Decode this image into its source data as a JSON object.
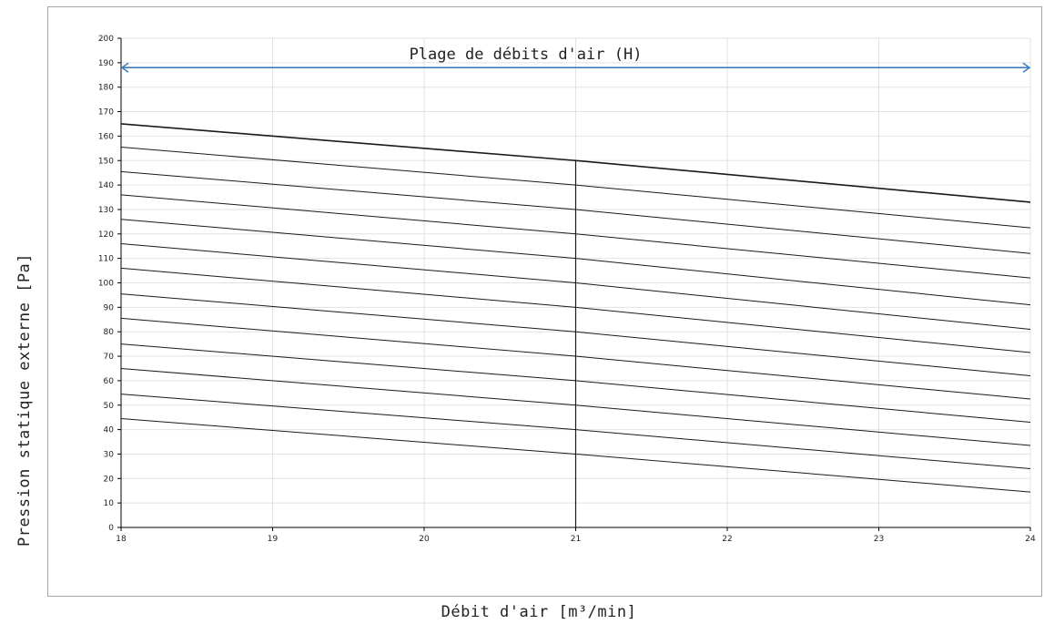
{
  "chart_data": {
    "type": "line",
    "title": "",
    "xlabel": "Débit d'air [m³/min]",
    "ylabel": "Pression statique externe [Pa]",
    "xlim": [
      18,
      24
    ],
    "ylim": [
      0,
      200
    ],
    "x_ticks": [
      "18",
      "19",
      "20",
      "21",
      "22",
      "23",
      "24"
    ],
    "y_ticks": [
      "0",
      "10",
      "20",
      "30",
      "40",
      "50",
      "60",
      "70",
      "80",
      "90",
      "100",
      "110",
      "120",
      "130",
      "140",
      "150",
      "160",
      "170",
      "180",
      "190",
      "200"
    ],
    "grid": true,
    "legend": "none",
    "x": [
      18,
      21,
      24
    ],
    "series": [
      {
        "values": [
          165,
          150,
          133
        ]
      },
      {
        "values": [
          155.5,
          140,
          122.5
        ]
      },
      {
        "values": [
          145.5,
          130,
          112
        ]
      },
      {
        "values": [
          136,
          120,
          102
        ]
      },
      {
        "values": [
          126,
          110,
          91
        ]
      },
      {
        "values": [
          116,
          100,
          81
        ]
      },
      {
        "values": [
          106,
          90,
          71.5
        ]
      },
      {
        "values": [
          95.5,
          80,
          62
        ]
      },
      {
        "values": [
          85.5,
          70,
          52.5
        ]
      },
      {
        "values": [
          75,
          60,
          43
        ]
      },
      {
        "values": [
          65,
          50,
          33.5
        ]
      },
      {
        "values": [
          54.5,
          40,
          24
        ]
      },
      {
        "values": [
          44.5,
          30,
          14.5
        ]
      }
    ],
    "vertical_marker_x": 21,
    "vertical_marker_top": 150,
    "range_arrow": {
      "label": "Plage de débits d'air (H)",
      "y": 188,
      "x_from": 18,
      "x_to": 24
    },
    "colors": {
      "curves": "#1a1a1a",
      "arrow": "#3f7fbf",
      "grid": "#e2e2e2",
      "axis": "#000000"
    }
  }
}
